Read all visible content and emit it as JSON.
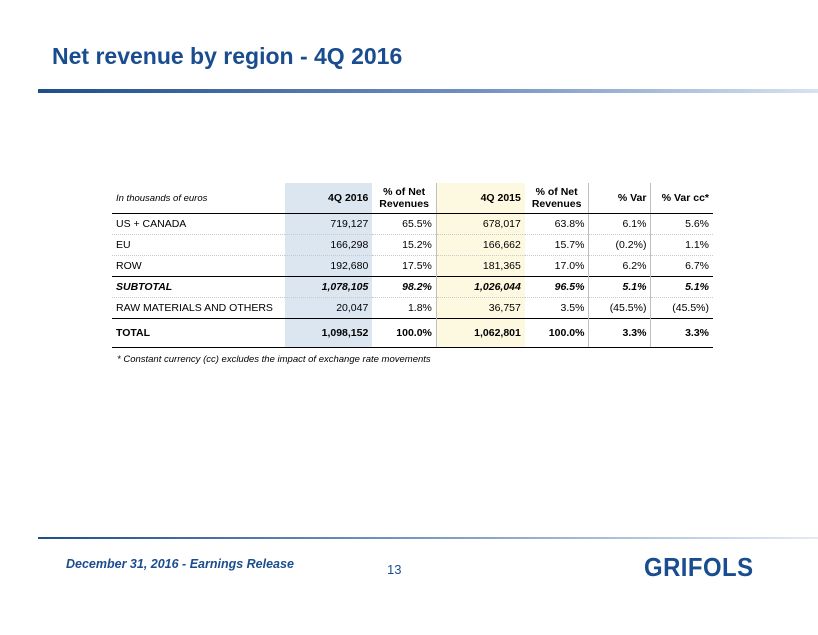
{
  "slide": {
    "title": "Net revenue by region - 4Q 2016",
    "footer": "December 31, 2016 - Earnings Release",
    "page_number": "13",
    "logo": "GRIFOLS"
  },
  "table": {
    "header": {
      "note": "In thousands of euros",
      "col1": "4Q 2016",
      "col2_line1": "% of Net",
      "col2_line2": "Revenues",
      "col3": "4Q 2015",
      "col4_line1": "% of Net",
      "col4_line2": "Revenues",
      "col5": "% Var",
      "col6": "% Var cc*"
    },
    "rows": [
      {
        "label": "US + CANADA",
        "q4_2016": "719,127",
        "pct_2016": "65.5%",
        "q4_2015": "678,017",
        "pct_2015": "63.8%",
        "var": "6.1%",
        "var_cc": "5.6%"
      },
      {
        "label": "EU",
        "q4_2016": "166,298",
        "pct_2016": "15.2%",
        "q4_2015": "166,662",
        "pct_2015": "15.7%",
        "var": "(0.2%)",
        "var_cc": "1.1%"
      },
      {
        "label": "ROW",
        "q4_2016": "192,680",
        "pct_2016": "17.5%",
        "q4_2015": "181,365",
        "pct_2015": "17.0%",
        "var": "6.2%",
        "var_cc": "6.7%"
      },
      {
        "label": "SUBTOTAL",
        "q4_2016": "1,078,105",
        "pct_2016": "98.2%",
        "q4_2015": "1,026,044",
        "pct_2015": "96.5%",
        "var": "5.1%",
        "var_cc": "5.1%"
      },
      {
        "label": "RAW MATERIALS AND OTHERS",
        "q4_2016": "20,047",
        "pct_2016": "1.8%",
        "q4_2015": "36,757",
        "pct_2015": "3.5%",
        "var": "(45.5%)",
        "var_cc": "(45.5%)"
      },
      {
        "label": "TOTAL",
        "q4_2016": "1,098,152",
        "pct_2016": "100.0%",
        "q4_2015": "1,062,801",
        "pct_2015": "100.0%",
        "var": "3.3%",
        "var_cc": "3.3%"
      }
    ],
    "footnote": "* Constant currency (cc) excludes the impact of exchange rate movements"
  },
  "colors": {
    "brand_blue": "#1a4d8f",
    "shade_2016": "#dce6f1",
    "shade_2015": "#fdf9e0"
  }
}
